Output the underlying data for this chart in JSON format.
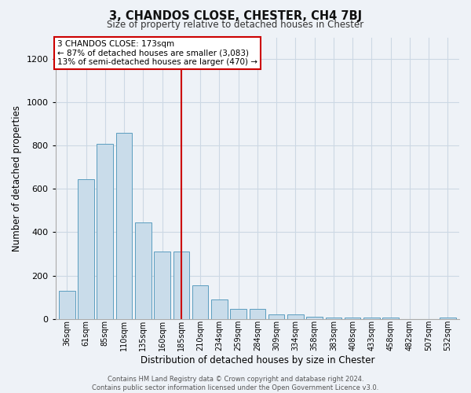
{
  "title": "3, CHANDOS CLOSE, CHESTER, CH4 7BJ",
  "subtitle": "Size of property relative to detached houses in Chester",
  "xlabel": "Distribution of detached houses by size in Chester",
  "ylabel": "Number of detached properties",
  "bar_labels": [
    "36sqm",
    "61sqm",
    "85sqm",
    "110sqm",
    "135sqm",
    "160sqm",
    "185sqm",
    "210sqm",
    "234sqm",
    "259sqm",
    "284sqm",
    "309sqm",
    "334sqm",
    "358sqm",
    "383sqm",
    "408sqm",
    "433sqm",
    "458sqm",
    "482sqm",
    "507sqm",
    "532sqm"
  ],
  "bar_values": [
    130,
    645,
    810,
    860,
    445,
    310,
    310,
    155,
    90,
    45,
    45,
    20,
    20,
    10,
    5,
    5,
    5,
    5,
    0,
    0,
    5
  ],
  "bar_color": "#c9dcea",
  "bar_edge_color": "#5b9dbf",
  "vline_x": 6,
  "vline_color": "#cc0000",
  "ylim": [
    0,
    1300
  ],
  "yticks": [
    0,
    200,
    400,
    600,
    800,
    1000,
    1200
  ],
  "annotation_lines": [
    "3 CHANDOS CLOSE: 173sqm",
    "← 87% of detached houses are smaller (3,083)",
    "13% of semi-detached houses are larger (470) →"
  ],
  "annotation_box_color": "#cc0000",
  "footer_lines": [
    "Contains HM Land Registry data © Crown copyright and database right 2024.",
    "Contains public sector information licensed under the Open Government Licence v3.0."
  ],
  "bg_color": "#eef2f7",
  "grid_color": "#ccd8e4"
}
